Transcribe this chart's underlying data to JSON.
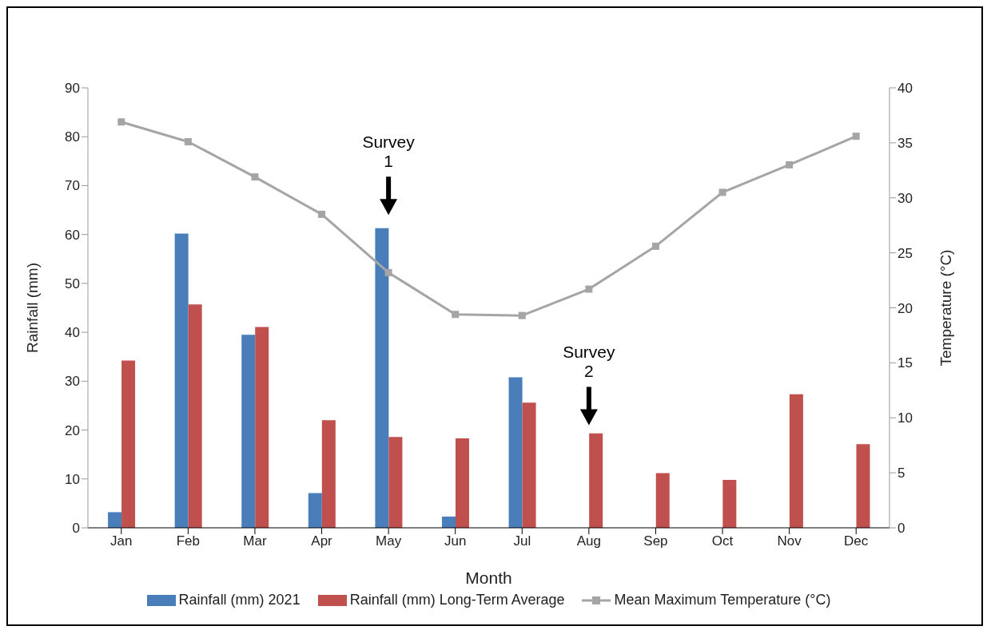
{
  "chart_data": {
    "type": "bar",
    "xlabel": "Month",
    "ylabel": "Rainfall (mm)",
    "y2label": "Temperature (°C)",
    "categories": [
      "Jan",
      "Feb",
      "Mar",
      "Apr",
      "May",
      "Jun",
      "Jul",
      "Aug",
      "Sep",
      "Oct",
      "Nov",
      "Dec"
    ],
    "series": [
      {
        "name": "Rainfall (mm) 2021",
        "color": "#4a7ebb",
        "values": [
          3.2,
          60.2,
          39.5,
          7.1,
          61.3,
          2.3,
          30.8,
          0,
          0,
          0,
          0,
          0
        ]
      },
      {
        "name": "Rainfall (mm) Long-Term Average",
        "color": "#c0504d",
        "values": [
          34.2,
          45.7,
          41.1,
          22,
          18.6,
          18.3,
          25.6,
          19.3,
          11.2,
          9.8,
          27.3,
          17.1
        ]
      },
      {
        "name": "Mean Maximum Temperature (°C)",
        "type": "line",
        "axis": "y2",
        "color": "#a5a5a5",
        "marker": "square",
        "values": [
          36.9,
          35.1,
          31.9,
          28.5,
          23.2,
          19.4,
          19.3,
          21.7,
          25.6,
          30.5,
          33.0,
          35.6
        ]
      }
    ],
    "ylim": [
      0,
      90
    ],
    "yticks": [
      0,
      10,
      20,
      30,
      40,
      50,
      60,
      70,
      80,
      90
    ],
    "y2lim": [
      0,
      40
    ],
    "y2ticks": [
      0,
      5,
      10,
      15,
      20,
      25,
      30,
      35,
      40
    ],
    "annotations": [
      "Survey 1",
      "Survey 2"
    ],
    "legend": "bottom",
    "grid": false
  }
}
